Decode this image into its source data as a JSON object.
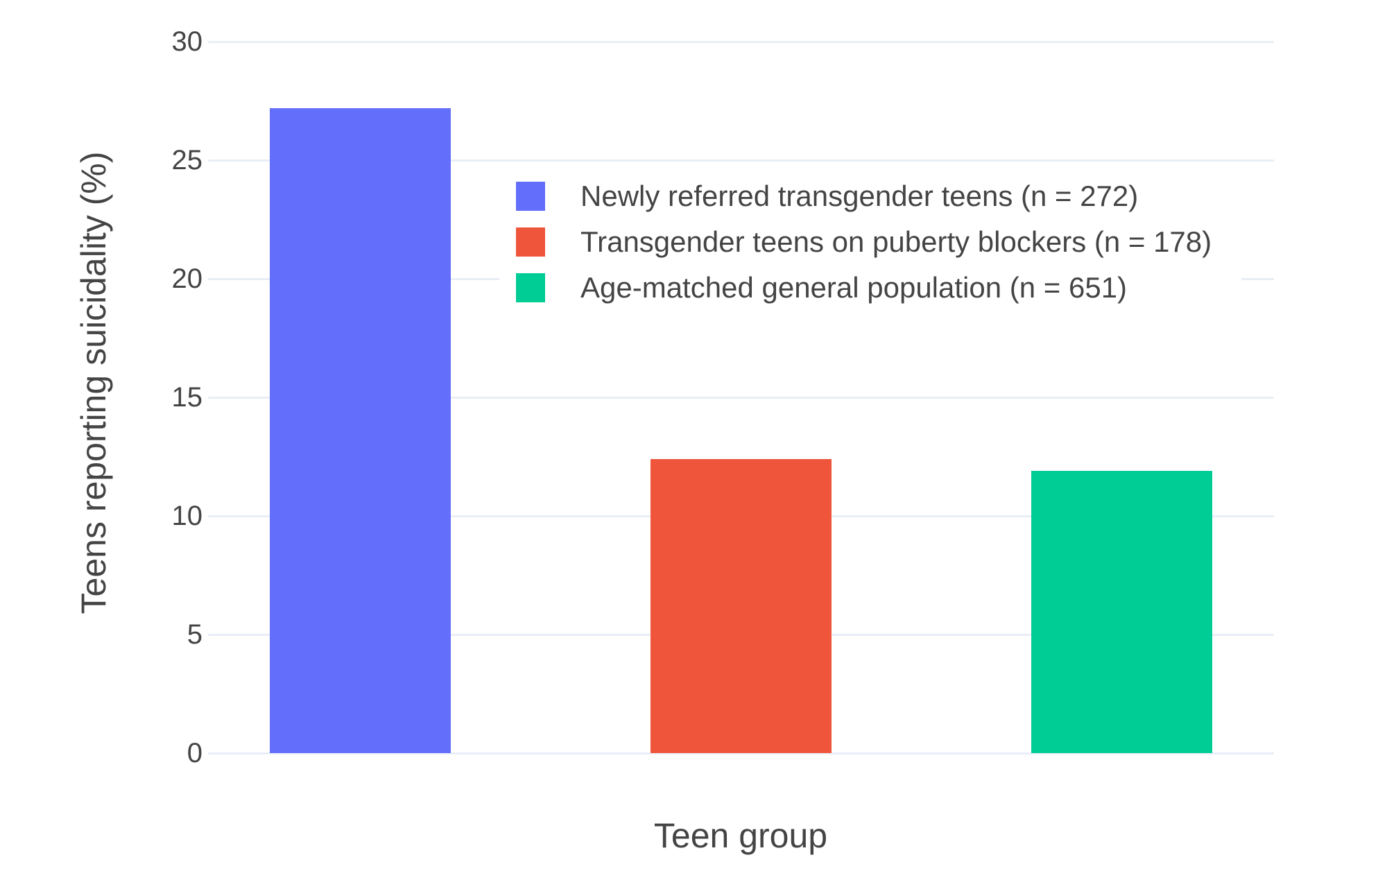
{
  "colors": {
    "background": "#ffffff",
    "grid": "#e9eef6",
    "text": "#444444",
    "bar_blue": "#636EFA",
    "bar_red": "#EF553B",
    "bar_green": "#00CC96"
  },
  "chart_data": {
    "type": "bar",
    "title": "",
    "xlabel": "Teen group",
    "ylabel": "Teens reporting suicidality (%)",
    "categories": [
      "Newly referred transgender teens (n = 272)",
      "Transgender teens on puberty blockers (n = 178)",
      "Age-matched general population (n = 651)"
    ],
    "values": [
      27.2,
      12.4,
      11.9
    ],
    "bar_colors": [
      "#636EFA",
      "#EF553B",
      "#00CC96"
    ],
    "ylim": [
      0,
      30
    ],
    "yticks": [
      0,
      5,
      10,
      15,
      20,
      25,
      30
    ],
    "xticklabels": [],
    "grid": true,
    "legend_position": "inside-top-center",
    "legend": [
      {
        "label": "Newly referred transgender teens (n = 272)",
        "color": "#636EFA"
      },
      {
        "label": "Transgender teens on puberty blockers (n = 178)",
        "color": "#EF553B"
      },
      {
        "label": "Age-matched general population (n = 651)",
        "color": "#00CC96"
      }
    ]
  }
}
